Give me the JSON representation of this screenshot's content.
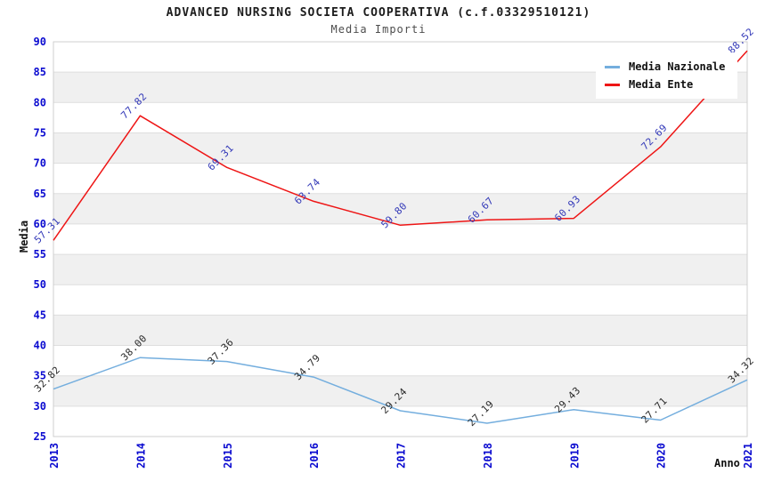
{
  "header": {
    "title": "ADVANCED NURSING SOCIETA COOPERATIVA (c.f.03329510121)",
    "subtitle": "Media Importi"
  },
  "chart_data": {
    "type": "line",
    "title": "ADVANCED NURSING SOCIETA COOPERATIVA (c.f.03329510121)",
    "subtitle": "Media Importi",
    "xlabel": "Anno",
    "ylabel": "Media",
    "categories": [
      "2013",
      "2014",
      "2015",
      "2016",
      "2017",
      "2018",
      "2019",
      "2020",
      "2021"
    ],
    "series": [
      {
        "name": "Media Nazionale",
        "color": "#74aede",
        "label_color": "#2a2a2a",
        "values": [
          32.82,
          38.0,
          37.36,
          34.79,
          29.24,
          27.19,
          29.43,
          27.71,
          34.32
        ],
        "labels": [
          "32.82",
          "38.00",
          "37.36",
          "34.79",
          "29.24",
          "27.19",
          "29.43",
          "27.71",
          "34.32"
        ]
      },
      {
        "name": "Media Ente",
        "color": "#ee1515",
        "label_color": "#3238b8",
        "values": [
          57.31,
          77.82,
          69.31,
          63.74,
          59.8,
          60.67,
          60.93,
          72.69,
          88.52
        ],
        "labels": [
          "57.31",
          "77.82",
          "69.31",
          "63.74",
          "59.80",
          "60.67",
          "60.93",
          "72.69",
          "88.52"
        ]
      }
    ],
    "ylim": [
      25,
      90
    ],
    "yticks": [
      25,
      30,
      35,
      40,
      45,
      50,
      55,
      60,
      65,
      70,
      75,
      80,
      85,
      90
    ],
    "grid": "horizontal-bands-alternating",
    "legend_position": "top-right",
    "colors": {
      "tick_label": "#0b0bd0",
      "band_fill": "#f0f0f0",
      "gridline": "#dedede",
      "plot_border": "#cfcfcf",
      "background": "#ffffff"
    }
  }
}
